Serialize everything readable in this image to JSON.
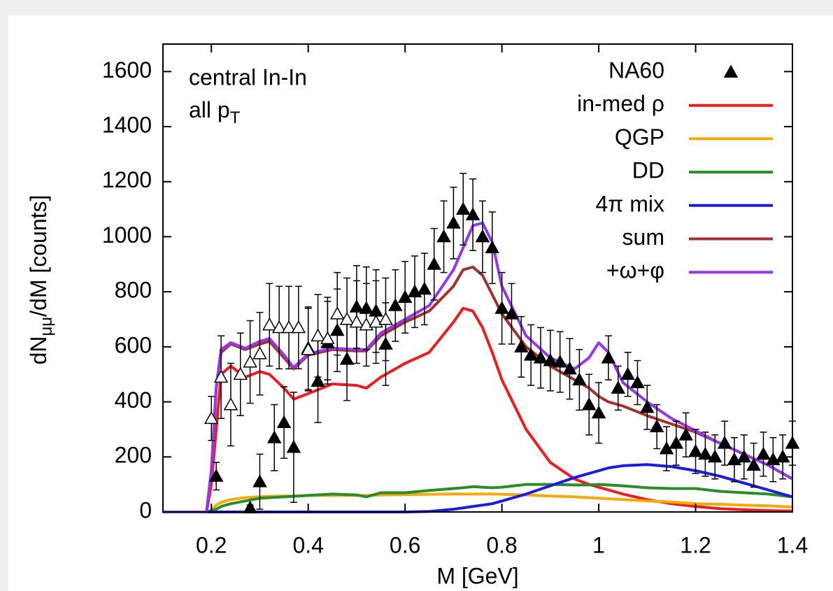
{
  "chart_data": {
    "type": "line",
    "annotation_lines": [
      {
        "text": "central In-In"
      },
      {
        "text": "all p",
        "subscript": "T"
      }
    ],
    "x_label": "M [GeV]",
    "y_label": {
      "text": "dN",
      "subscript": "μμ",
      "suffix": "/dM [counts]"
    },
    "xlim": [
      0.1,
      1.4
    ],
    "ylim": [
      0,
      1700
    ],
    "xticks": [
      0.2,
      0.4,
      0.6,
      0.8,
      1,
      1.2,
      1.4
    ],
    "yticks": [
      0,
      200,
      400,
      600,
      800,
      1000,
      1200,
      1400,
      1600
    ],
    "grid": false,
    "legend": "top-right",
    "points": [
      {
        "name": "NA60",
        "marker": "filled",
        "color": "#000000",
        "x": [
          0.21,
          0.28,
          0.3,
          0.33,
          0.35,
          0.37,
          0.4,
          0.42,
          0.44,
          0.46,
          0.48,
          0.5,
          0.52,
          0.54,
          0.56,
          0.58,
          0.6,
          0.62,
          0.64,
          0.66,
          0.68,
          0.7,
          0.72,
          0.74,
          0.76,
          0.78,
          0.8,
          0.82,
          0.84,
          0.86,
          0.88,
          0.9,
          0.92,
          0.94,
          0.96,
          0.98,
          1.0,
          1.02,
          1.04,
          1.06,
          1.08,
          1.1,
          1.12,
          1.14,
          1.16,
          1.18,
          1.2,
          1.22,
          1.24,
          1.26,
          1.28,
          1.3,
          1.32,
          1.34,
          1.36,
          1.38,
          1.4
        ],
        "values": [
          130,
          15,
          110,
          270,
          325,
          235,
          595,
          475,
          615,
          660,
          555,
          745,
          740,
          730,
          610,
          750,
          780,
          800,
          810,
          900,
          1000,
          1050,
          1100,
          1080,
          1000,
          960,
          740,
          720,
          600,
          570,
          560,
          550,
          545,
          520,
          480,
          390,
          360,
          560,
          450,
          500,
          470,
          380,
          310,
          230,
          250,
          280,
          220,
          210,
          200,
          250,
          190,
          200,
          170,
          210,
          190,
          200,
          250
        ],
        "errors": [
          50,
          10,
          100,
          120,
          130,
          200,
          150,
          150,
          150,
          150,
          150,
          150,
          150,
          150,
          150,
          130,
          130,
          130,
          130,
          130,
          130,
          130,
          130,
          130,
          130,
          130,
          130,
          110,
          110,
          110,
          110,
          110,
          110,
          110,
          110,
          110,
          110,
          80,
          80,
          80,
          80,
          80,
          80,
          80,
          80,
          80,
          80,
          80,
          80,
          80,
          80,
          80,
          80,
          80,
          80,
          80,
          80
        ]
      },
      {
        "marker": "open",
        "color": "#000000",
        "x": [
          0.2,
          0.22,
          0.24,
          0.26,
          0.28,
          0.3,
          0.32,
          0.34,
          0.36,
          0.38,
          0.4,
          0.42,
          0.44,
          0.46,
          0.48,
          0.5,
          0.52,
          0.54,
          0.56
        ],
        "values": [
          340,
          490,
          390,
          500,
          545,
          575,
          680,
          670,
          670,
          670,
          590,
          640,
          630,
          720,
          700,
          690,
          680,
          690,
          700
        ],
        "errors": [
          80,
          150,
          150,
          150,
          150,
          150,
          150,
          150,
          150,
          150,
          150,
          150,
          150,
          150,
          150,
          150,
          150,
          150,
          150
        ]
      }
    ],
    "x": [
      0.1,
      0.19,
      0.2,
      0.21,
      0.22,
      0.24,
      0.27,
      0.3,
      0.32,
      0.35,
      0.37,
      0.4,
      0.45,
      0.5,
      0.52,
      0.55,
      0.6,
      0.65,
      0.7,
      0.72,
      0.74,
      0.76,
      0.78,
      0.8,
      0.85,
      0.9,
      0.95,
      0.98,
      1.0,
      1.02,
      1.05,
      1.1,
      1.15,
      1.2,
      1.25,
      1.3,
      1.35,
      1.4
    ],
    "series": [
      {
        "name": "in-med ρ",
        "color": "#ee1c1c",
        "values": [
          0,
          0,
          100,
          300,
          500,
          530,
          490,
          510,
          500,
          450,
          410,
          430,
          465,
          460,
          450,
          490,
          540,
          580,
          690,
          740,
          730,
          670,
          580,
          480,
          300,
          180,
          120,
          100,
          90,
          80,
          65,
          45,
          30,
          20,
          12,
          8,
          5,
          3
        ]
      },
      {
        "name": "QGP",
        "color": "#f5a90d",
        "values": [
          0,
          0,
          5,
          25,
          35,
          45,
          52,
          55,
          57,
          58,
          58,
          60,
          60,
          60,
          60,
          62,
          63,
          64,
          65,
          65,
          65,
          65,
          65,
          64,
          62,
          58,
          55,
          52,
          50,
          48,
          45,
          40,
          36,
          30,
          28,
          25,
          22,
          18
        ]
      },
      {
        "name": "DD",
        "color": "#2a8c2a",
        "values": [
          0,
          0,
          5,
          10,
          20,
          30,
          40,
          50,
          52,
          55,
          57,
          60,
          65,
          62,
          55,
          70,
          70,
          78,
          85,
          88,
          92,
          90,
          88,
          90,
          100,
          100,
          98,
          98,
          100,
          98,
          95,
          88,
          85,
          85,
          75,
          70,
          65,
          55
        ]
      },
      {
        "name": "4π mix",
        "color": "#1c1ce0",
        "values": [
          0,
          0,
          0,
          0,
          0,
          0,
          0,
          0,
          0,
          0,
          0,
          0,
          0,
          0,
          0,
          0,
          0,
          2,
          10,
          15,
          20,
          25,
          30,
          40,
          65,
          95,
          125,
          140,
          150,
          160,
          168,
          172,
          165,
          150,
          130,
          105,
          80,
          55
        ]
      },
      {
        "name": "sum",
        "color": "#a3322c",
        "values": [
          0,
          0,
          150,
          450,
          580,
          610,
          590,
          610,
          620,
          560,
          520,
          570,
          590,
          585,
          585,
          640,
          690,
          730,
          820,
          880,
          890,
          860,
          790,
          720,
          600,
          530,
          480,
          450,
          420,
          400,
          385,
          350,
          320,
          290,
          250,
          210,
          170,
          120
        ]
      },
      {
        "name": "+ω+φ",
        "color": "#9a35ee",
        "values": [
          0,
          0,
          150,
          455,
          590,
          615,
          595,
          620,
          630,
          570,
          525,
          575,
          595,
          590,
          590,
          650,
          700,
          750,
          880,
          960,
          1040,
          1050,
          980,
          820,
          640,
          560,
          520,
          560,
          615,
          580,
          470,
          400,
          340,
          295,
          250,
          210,
          170,
          120
        ]
      }
    ]
  }
}
